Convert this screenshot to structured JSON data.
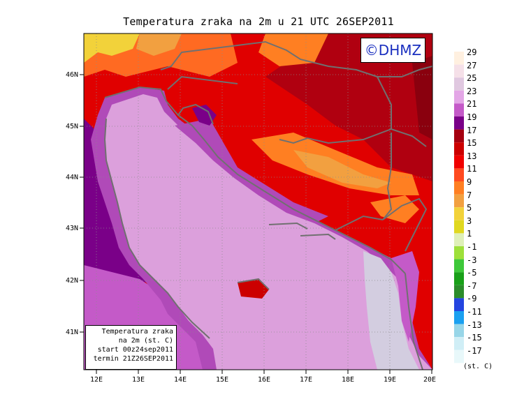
{
  "title": "Temperatura zraka na 2m u 21 UTC 26SEP2011",
  "copyright": "©DHMZ",
  "info_box": {
    "line1": "Temperatura zraka",
    "line2": "na 2m (st. C)",
    "line3": "start 00z24sep2011",
    "line4": "termin 21Z26SEP2011"
  },
  "lat_labels": [
    "46N",
    "45N",
    "44N",
    "43N",
    "42N",
    "41N"
  ],
  "lon_labels": [
    "12E",
    "13E",
    "14E",
    "15E",
    "16E",
    "17E",
    "18E",
    "19E",
    "20E"
  ],
  "colorbar": {
    "unit": "(st. C)",
    "levels": [
      "29",
      "27",
      "25",
      "23",
      "21",
      "19",
      "17",
      "15",
      "13",
      "11",
      "9",
      "7",
      "5",
      "3",
      "1",
      "-1",
      "-3",
      "-5",
      "-7",
      "-9",
      "-11",
      "-13",
      "-15",
      "-17"
    ],
    "colors": [
      "#fff0e0",
      "#f5e0e8",
      "#e0c8e0",
      "#e3a6e6",
      "#c45ac8",
      "#7a0088",
      "#a50010",
      "#cc0000",
      "#f00000",
      "#ff4a20",
      "#ff7f22",
      "#f2a040",
      "#f2d23a",
      "#e0d820",
      "#dff0b8",
      "#9ee03a",
      "#3ec83a",
      "#19a019",
      "#2b8c2b",
      "#2445e0",
      "#1aa0f0",
      "#98d6e8",
      "#d0eef6",
      "#e8f8fa"
    ]
  },
  "colors": {
    "sea": "#dca0dc",
    "sea_south": "#d3cde0",
    "coast_purple": "#b04ab8",
    "dark_purple": "#8a2aa0",
    "borders": "#707070"
  }
}
